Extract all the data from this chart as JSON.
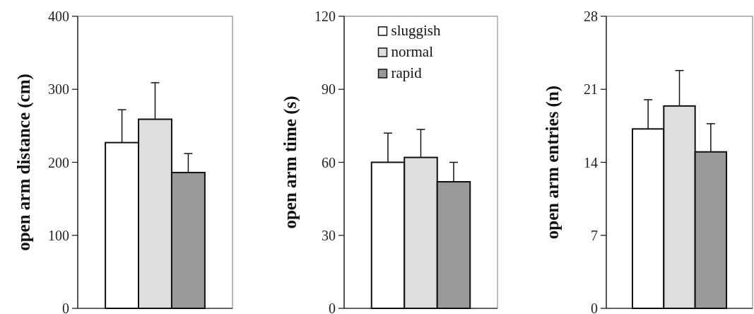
{
  "chart_data": [
    {
      "type": "bar",
      "ylabel": "open arm distance (cm)",
      "categories": [
        null
      ],
      "ylim": [
        0,
        400
      ],
      "yticks": [
        0,
        100,
        200,
        300,
        400
      ],
      "legend": false,
      "series": [
        {
          "color": "#ffffff",
          "values": [
            227
          ],
          "errors": [
            [
              227,
              272
            ]
          ]
        },
        {
          "color": "#dedede",
          "values": [
            259
          ],
          "errors": [
            [
              259,
              309
            ]
          ]
        },
        {
          "color": "#999999",
          "values": [
            186
          ],
          "errors": [
            [
              186,
              212
            ]
          ]
        }
      ]
    },
    {
      "type": "bar",
      "ylabel": "open arm time (s)",
      "categories": [
        null
      ],
      "ylim": [
        0,
        120
      ],
      "yticks": [
        0,
        30,
        60,
        90,
        120
      ],
      "legend": "top",
      "series": [
        {
          "name": "sluggish",
          "color": "#ffffff",
          "values": [
            60
          ],
          "errors": [
            [
              60,
              72
            ]
          ]
        },
        {
          "name": "normal",
          "color": "#dedede",
          "values": [
            62
          ],
          "errors": [
            [
              62,
              73.5
            ]
          ]
        },
        {
          "name": "rapid",
          "color": "#999999",
          "values": [
            52
          ],
          "errors": [
            [
              52,
              60
            ]
          ]
        }
      ]
    },
    {
      "type": "bar",
      "ylabel": "open arm entries (n)",
      "categories": [
        null
      ],
      "ylim": [
        0,
        28
      ],
      "yticks": [
        0,
        7,
        14,
        21,
        28
      ],
      "legend": false,
      "series": [
        {
          "color": "#ffffff",
          "values": [
            17.2
          ],
          "errors": [
            [
              17.2,
              20
            ]
          ]
        },
        {
          "color": "#dedede",
          "values": [
            19.4
          ],
          "errors": [
            [
              19.4,
              22.8
            ]
          ]
        },
        {
          "color": "#999999",
          "values": [
            15
          ],
          "errors": [
            [
              15,
              17.7
            ]
          ]
        }
      ]
    }
  ]
}
